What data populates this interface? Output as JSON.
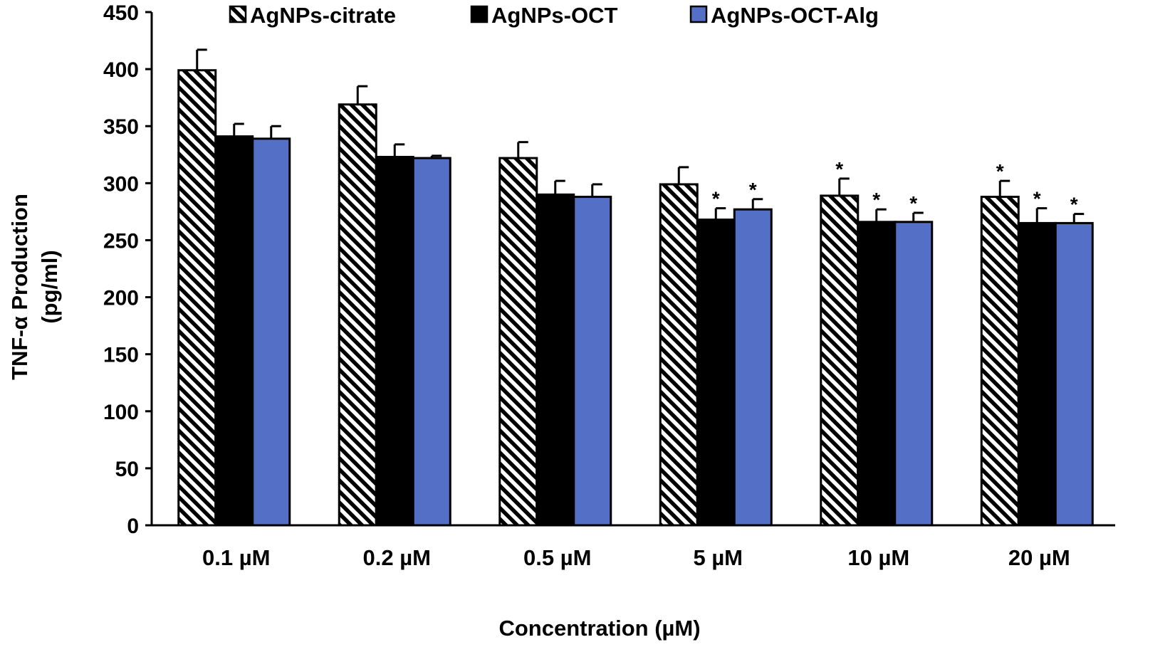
{
  "chart_data": {
    "type": "bar",
    "title": "",
    "xlabel": "Concentration (µM)",
    "ylabel_lines": [
      "TNF-α Production",
      "(pg/ml)"
    ],
    "ylim": [
      0,
      450
    ],
    "ytick_step": 50,
    "categories": [
      "0.1 µM",
      "0.2 µM",
      "0.5 µM",
      "5 µM",
      "10 µM",
      "20 µM"
    ],
    "series": [
      {
        "name": "AgNPs-citrate",
        "style": "hatched",
        "color": "#000000",
        "values": [
          399,
          369,
          322,
          299,
          289,
          288
        ],
        "errors": [
          18,
          16,
          14,
          15,
          15,
          14
        ],
        "significance": [
          "",
          "",
          "",
          "",
          "*",
          "*"
        ]
      },
      {
        "name": "AgNPs-OCT",
        "style": "solid",
        "color": "#000000",
        "values": [
          341,
          323,
          290,
          268,
          266,
          265
        ],
        "errors": [
          11,
          11,
          12,
          10,
          11,
          13
        ],
        "significance": [
          "",
          "",
          "",
          "*",
          "*",
          "*"
        ]
      },
      {
        "name": "AgNPs-OCT-Alg",
        "style": "solid",
        "color": "#5470c6",
        "values": [
          339,
          322,
          288,
          277,
          266,
          265
        ],
        "errors": [
          11,
          2,
          11,
          9,
          8,
          8
        ],
        "significance": [
          "",
          "",
          "",
          "*",
          "*",
          "*"
        ]
      }
    ],
    "legend_position": "top"
  }
}
